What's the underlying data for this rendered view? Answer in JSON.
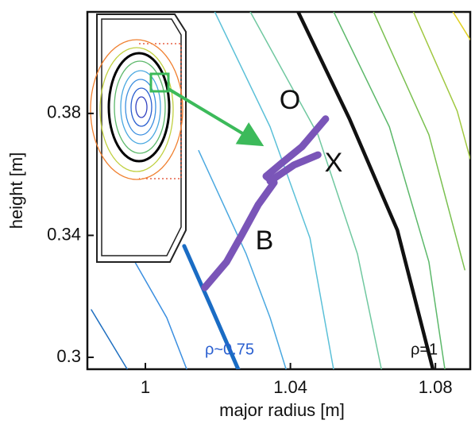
{
  "chart_data": {
    "type": "line",
    "x_label": "major radius [m]",
    "y_label": "height [m]",
    "xlim": [
      0.984,
      1.0896
    ],
    "ylim": [
      0.2961,
      0.4133
    ],
    "xticks": [
      1,
      1.04,
      1.08
    ],
    "yticks": [
      0.3,
      0.34,
      0.38
    ],
    "annotations": [
      "O",
      "X",
      "B",
      "ρ~0.75",
      "ρ=1"
    ],
    "series": [
      {
        "color": "#1f6fc0",
        "x": [
          0.9851,
          0.995
        ],
        "y": [
          0.3156,
          0.2961
        ]
      },
      {
        "color": "#3a8ee0",
        "x": [
          0.9971,
          1.0059,
          1.0114
        ],
        "y": [
          0.3313,
          0.313,
          0.2961
        ]
      },
      {
        "color": "#4aa8e0",
        "x": [
          1.0147,
          1.0278,
          1.0344,
          1.0388
        ],
        "y": [
          0.3678,
          0.3339,
          0.313,
          0.2961
        ]
      },
      {
        "color": "#5bc0d8",
        "x": [
          1.0191,
          1.0344,
          1.0454,
          1.0519
        ],
        "y": [
          0.4134,
          0.3756,
          0.3391,
          0.2961
        ]
      },
      {
        "color": "#70c8a0",
        "x": [
          1.0289,
          1.0476,
          1.0585,
          1.0651
        ],
        "y": [
          0.4134,
          0.373,
          0.3339,
          0.2961
        ]
      },
      {
        "color": "#5cb86a",
        "x": [
          1.0519,
          1.0673,
          1.0782,
          1.0826
        ],
        "y": [
          0.4134,
          0.3756,
          0.3313,
          0.2961
        ]
      },
      {
        "color": "#7ac050",
        "x": [
          1.0629,
          1.0782,
          1.0881
        ],
        "y": [
          0.4134,
          0.373,
          0.3287
        ]
      },
      {
        "color": "#a0c840",
        "x": [
          1.0739,
          1.086,
          1.0896
        ],
        "y": [
          0.4134,
          0.3808,
          0.3651
        ]
      },
      {
        "color": "#e0d020",
        "x": [
          1.0848,
          1.0896
        ],
        "y": [
          0.4134,
          0.4042
        ]
      },
      {
        "color": "#1a6cc4",
        "x": [
          1.0107,
          1.018,
          1.0256
        ],
        "y": [
          0.3365,
          0.3169,
          0.2961
        ]
      },
      {
        "color": "#111111",
        "x": [
          1.0421,
          1.0563,
          1.0695,
          1.0793
        ],
        "y": [
          0.4134,
          0.3782,
          0.3417,
          0.2961
        ]
      },
      {
        "color": "#7a55b8",
        "x": [
          1.0164,
          1.0224,
          1.0267,
          1.0311,
          1.0355,
          1.0333,
          1.0377,
          1.0432,
          1.0497
        ],
        "y": [
          0.3229,
          0.3313,
          0.3404,
          0.35,
          0.3573,
          0.3594,
          0.3638,
          0.3691,
          0.3782
        ]
      },
      {
        "color": "#7a55b8",
        "x": [
          1.0344,
          1.041,
          1.0476
        ],
        "y": [
          0.3578,
          0.3631,
          0.3664
        ]
      }
    ]
  }
}
